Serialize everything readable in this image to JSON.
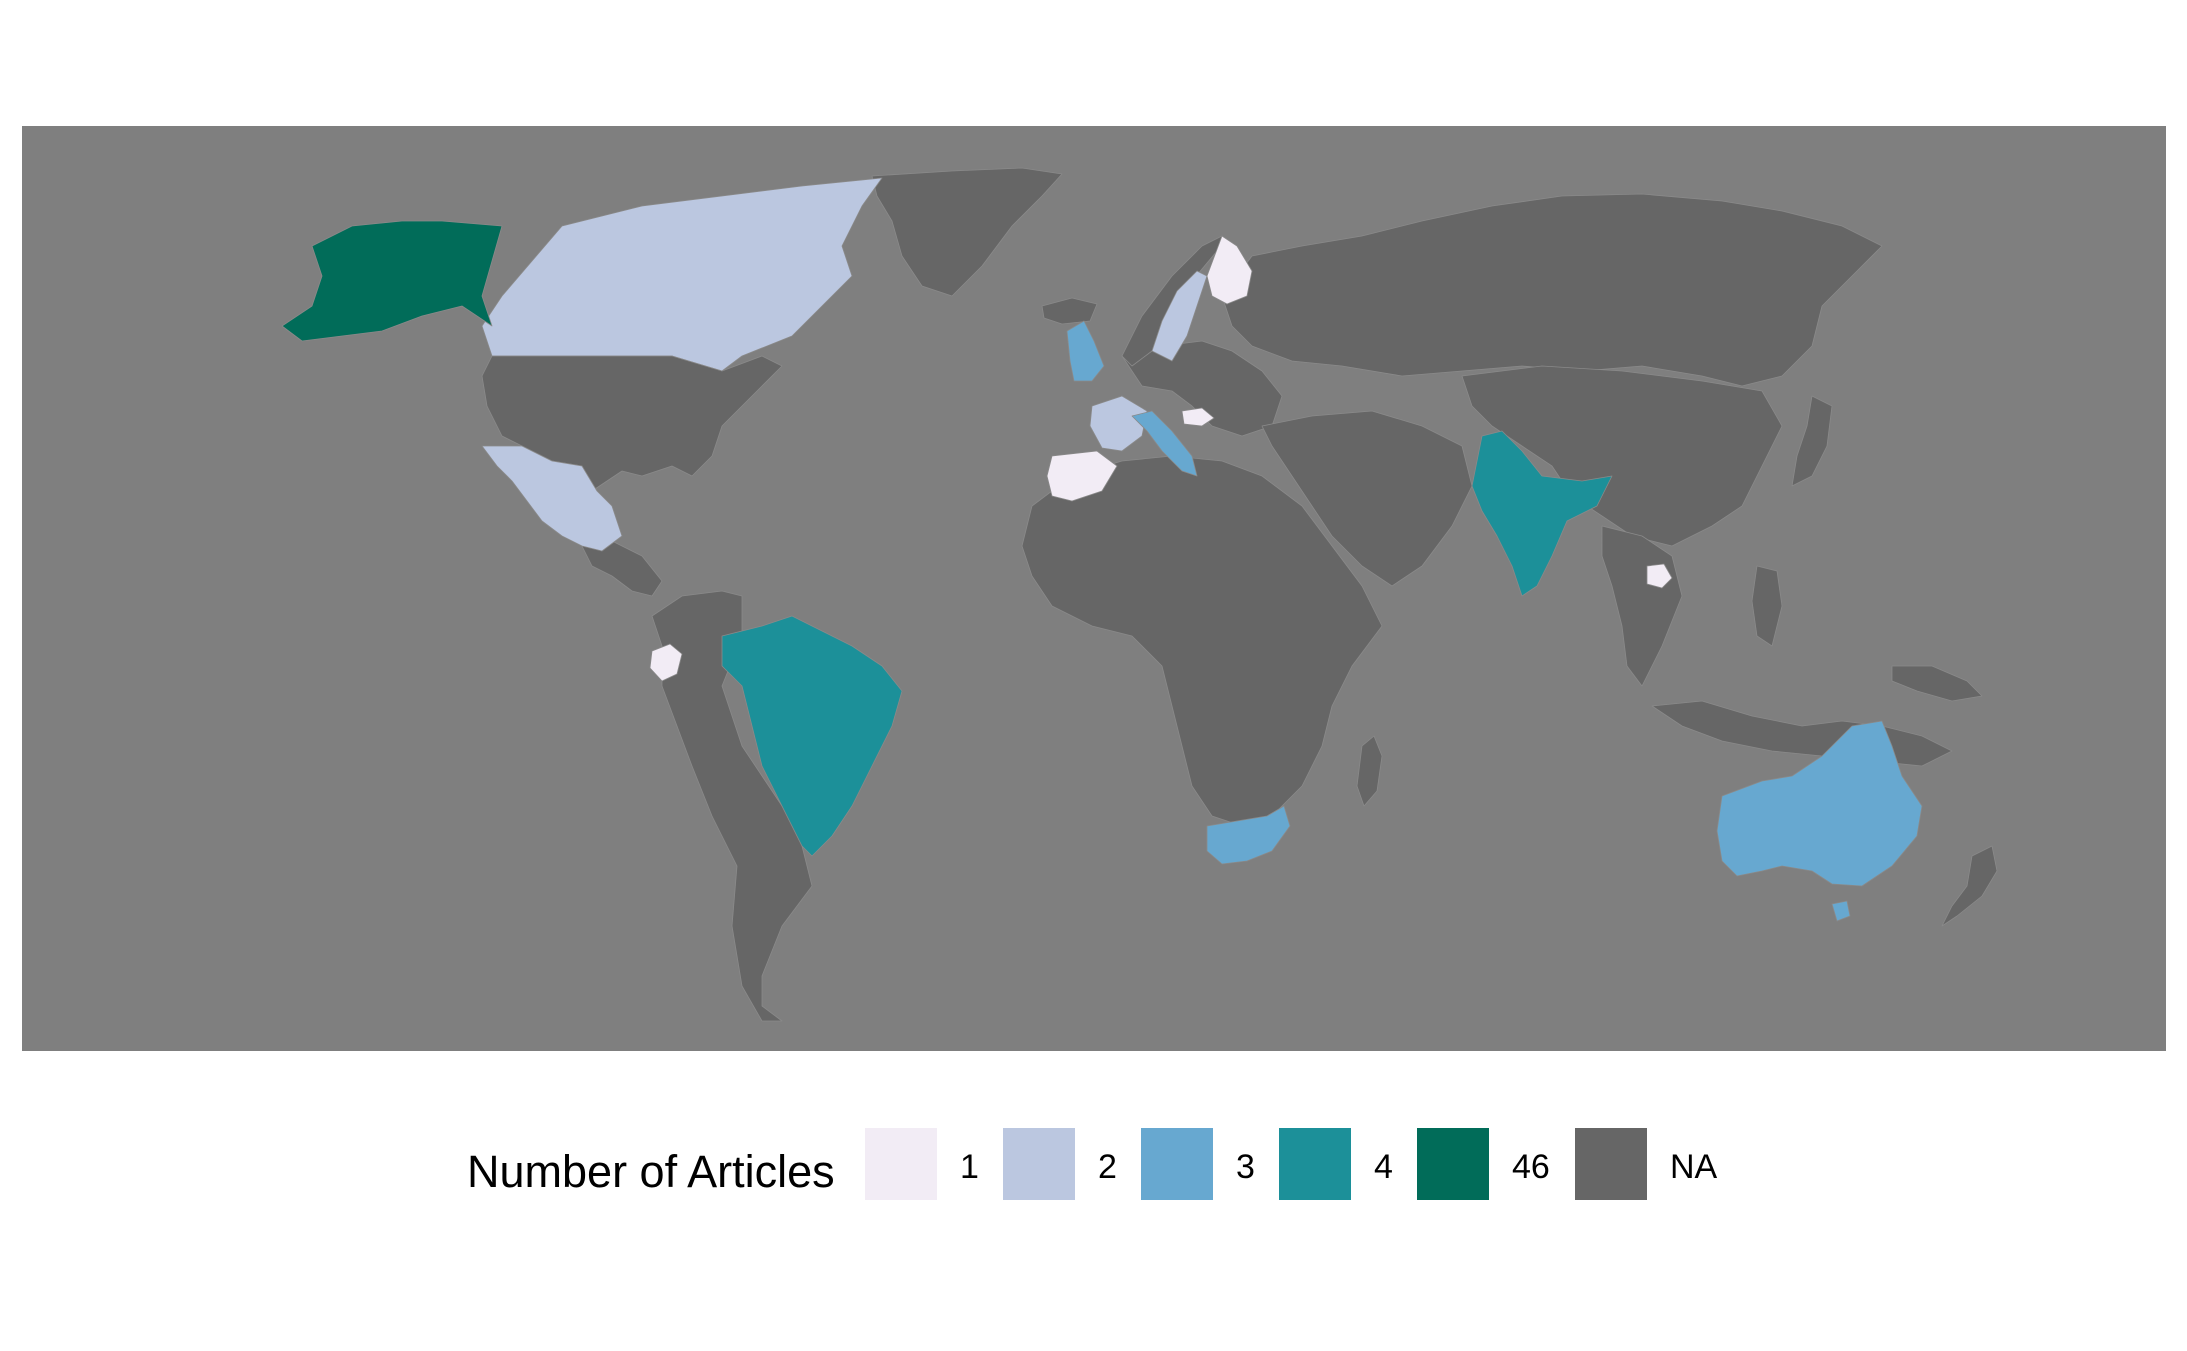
{
  "legend": {
    "title": "Number of Articles",
    "items": [
      {
        "label": "1",
        "color": "#f2ecf5"
      },
      {
        "label": "2",
        "color": "#bbc7e0"
      },
      {
        "label": "3",
        "color": "#67a8d0"
      },
      {
        "label": "4",
        "color": "#1c9099"
      },
      {
        "label": "46",
        "color": "#016c59"
      },
      {
        "label": "NA",
        "color": "#666666"
      }
    ]
  },
  "colors": {
    "ocean": "#7f7f7f",
    "na_land": "#666666",
    "country_border": "#8a8a8a"
  },
  "countries": [
    {
      "name": "United States",
      "articles": "46"
    },
    {
      "name": "Canada",
      "articles": "2"
    },
    {
      "name": "Mexico",
      "articles": "2"
    },
    {
      "name": "France",
      "articles": "2"
    },
    {
      "name": "Sweden",
      "articles": "2"
    },
    {
      "name": "United Kingdom",
      "articles": "3"
    },
    {
      "name": "Italy",
      "articles": "3"
    },
    {
      "name": "South Africa",
      "articles": "3"
    },
    {
      "name": "Australia",
      "articles": "3"
    },
    {
      "name": "Brazil",
      "articles": "4"
    },
    {
      "name": "India",
      "articles": "4"
    },
    {
      "name": "Spain",
      "articles": "1"
    },
    {
      "name": "Finland",
      "articles": "1"
    },
    {
      "name": "Hungary",
      "articles": "1"
    },
    {
      "name": "Ecuador",
      "articles": "1"
    },
    {
      "name": "Cambodia",
      "articles": "1"
    }
  ]
}
